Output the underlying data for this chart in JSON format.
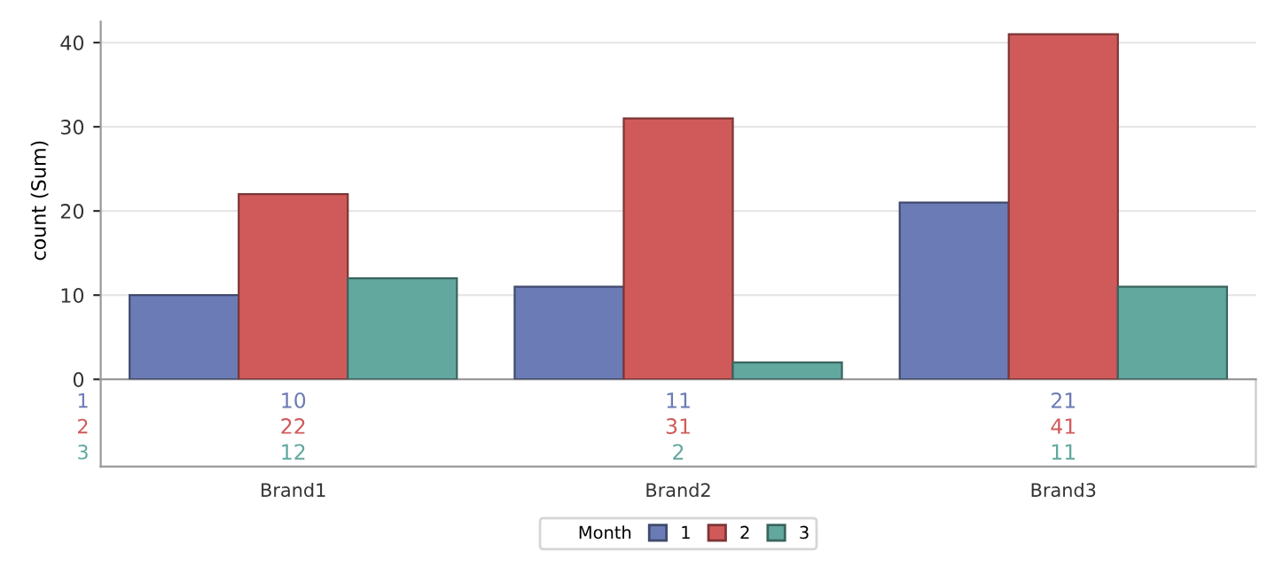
{
  "chart_data": {
    "type": "bar",
    "ylabel": "count (Sum)",
    "legend_title": "Month",
    "categories": [
      "Brand1",
      "Brand2",
      "Brand3"
    ],
    "series": [
      {
        "name": "1",
        "color": "#6b7bb5",
        "values": [
          10,
          11,
          21
        ]
      },
      {
        "name": "2",
        "color": "#d05a5a",
        "values": [
          22,
          31,
          41
        ]
      },
      {
        "name": "3",
        "color": "#62a89f",
        "values": [
          12,
          2,
          11
        ]
      }
    ],
    "ylim": [
      0,
      42.5
    ],
    "yticks": [
      0,
      10,
      20,
      30,
      40
    ],
    "grid": "y",
    "legend": "bottom",
    "data_labels": true
  }
}
